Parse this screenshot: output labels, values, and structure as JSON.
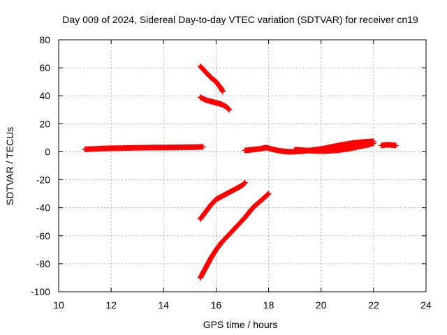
{
  "chart_data": {
    "type": "scatter",
    "title": "Day 009 of 2024, Sidereal Day-to-day VTEC variation (SDTVAR) for receiver cn19",
    "xlabel": "GPS time / hours",
    "ylabel": "SDTVAR / TECUs",
    "xlim": [
      10,
      24
    ],
    "ylim": [
      -100,
      80
    ],
    "xticks": [
      "10",
      "12",
      "14",
      "16",
      "18",
      "20",
      "22",
      "24"
    ],
    "yticks": [
      "-100",
      "-80",
      "-60",
      "-40",
      "-20",
      "0",
      "20",
      "40",
      "60",
      "80"
    ],
    "grid": true,
    "marker": "+",
    "color": "#ff0000",
    "series": [
      {
        "x": [
          11.0,
          11.3,
          11.6,
          12.0,
          12.4,
          12.8,
          13.2,
          13.6,
          14.0,
          14.4,
          14.8,
          15.2,
          15.5
        ],
        "y": [
          1.8,
          2.0,
          2.3,
          2.5,
          2.6,
          2.8,
          2.9,
          3.0,
          3.0,
          3.1,
          3.2,
          3.3,
          3.5
        ]
      },
      {
        "x": [
          15.4,
          15.6,
          15.8,
          16.0,
          16.2,
          16.25
        ],
        "y": [
          61,
          57,
          53,
          50,
          45,
          43
        ]
      },
      {
        "x": [
          15.4,
          15.6,
          15.8,
          16.0,
          16.2,
          16.4,
          16.5
        ],
        "y": [
          39,
          37,
          36,
          35,
          34,
          32,
          30
        ]
      },
      {
        "x": [
          15.4,
          15.6,
          15.8,
          16.0,
          16.2,
          16.4,
          16.6,
          16.8,
          17.0,
          17.1
        ],
        "y": [
          -48,
          -43,
          -38,
          -34,
          -32,
          -30,
          -28,
          -26,
          -24,
          -22
        ]
      },
      {
        "x": [
          15.4,
          15.6,
          15.8,
          16.0,
          16.2,
          16.5,
          16.8,
          17.1,
          17.4,
          17.7,
          18.0
        ],
        "y": [
          -90,
          -83,
          -76,
          -70,
          -65,
          -59,
          -53,
          -47,
          -40,
          -35,
          -30
        ]
      },
      {
        "x": [
          17.1,
          17.4,
          17.7,
          17.9,
          18.2,
          18.5,
          18.8,
          19.2,
          19.6,
          20.0,
          20.4,
          20.8,
          21.2,
          21.6,
          22.0
        ],
        "y": [
          1,
          1.5,
          2.2,
          3,
          1.5,
          0.5,
          0,
          0.3,
          1,
          2,
          3.5,
          5,
          6.2,
          7,
          7.5
        ]
      },
      {
        "x": [
          19.0,
          19.4,
          19.8,
          20.2,
          20.6,
          21.0,
          21.4,
          21.8,
          22.0
        ],
        "y": [
          1.5,
          1.0,
          0.5,
          0.5,
          1.0,
          2.0,
          3.5,
          5.0,
          6.0
        ]
      },
      {
        "x": [
          22.3,
          22.5,
          22.7,
          22.85
        ],
        "y": [
          4.5,
          5.0,
          4.8,
          4.5
        ]
      }
    ]
  }
}
